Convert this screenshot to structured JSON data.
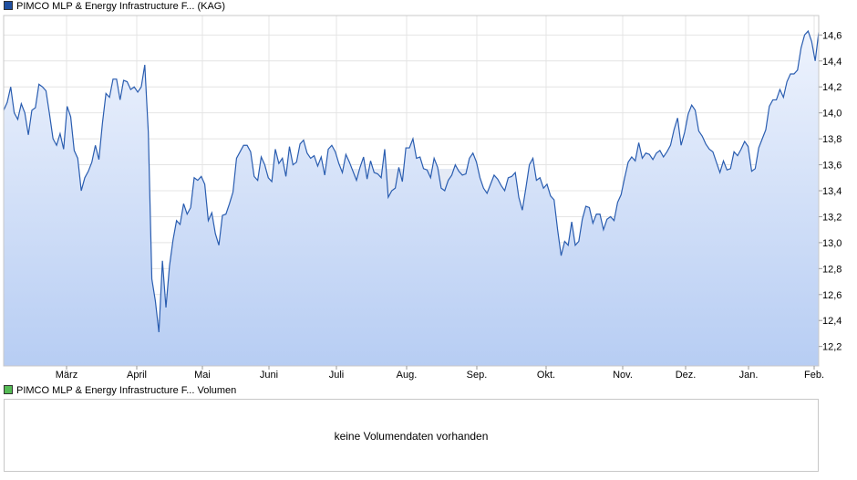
{
  "legend": {
    "price_label": "PIMCO MLP & Energy Infrastructure F...  (KAG)",
    "price_color": "#1f4fa0",
    "volume_label": "PIMCO MLP & Energy Infrastructure F...  Volumen",
    "volume_color": "#55bb55"
  },
  "volume_panel": {
    "message": "keine Volumendaten vorhanden"
  },
  "chart_data": {
    "type": "area",
    "title": "",
    "xlabel": "",
    "ylabel": "",
    "x_ticks": [
      "März",
      "April",
      "Mai",
      "Juni",
      "Juli",
      "Aug.",
      "Sep.",
      "Okt.",
      "Nov.",
      "Dez.",
      "Jan.",
      "Feb."
    ],
    "y_ticks": [
      12.2,
      12.4,
      12.6,
      12.8,
      13.0,
      13.2,
      13.4,
      13.6,
      13.8,
      14.0,
      14.2,
      14.4,
      14.6
    ],
    "ylim": [
      12.05,
      14.75
    ],
    "grid": true,
    "line_color": "#2a5db0",
    "fill_top_color": "#eef3fd",
    "fill_bottom_color": "#b7cdf3",
    "series": [
      {
        "values": [
          14.02,
          14.08,
          14.2,
          14.0,
          13.95,
          14.07,
          14.0,
          13.83,
          14.02,
          14.04,
          14.22,
          14.2,
          14.17,
          13.99,
          13.8,
          13.75,
          13.84,
          13.72,
          14.05,
          13.97,
          13.71,
          13.65,
          13.4,
          13.5,
          13.55,
          13.62,
          13.75,
          13.64,
          13.92,
          14.15,
          14.12,
          14.26,
          14.26,
          14.1,
          14.25,
          14.24,
          14.18,
          14.2,
          14.16,
          14.2,
          14.37,
          13.85,
          12.72,
          12.55,
          12.31,
          12.86,
          12.5,
          12.82,
          13.02,
          13.17,
          13.14,
          13.3,
          13.22,
          13.27,
          13.5,
          13.48,
          13.51,
          13.45,
          13.17,
          13.23,
          13.07,
          12.98,
          13.21,
          13.22,
          13.3,
          13.39,
          13.65,
          13.7,
          13.75,
          13.75,
          13.7,
          13.51,
          13.48,
          13.66,
          13.6,
          13.5,
          13.47,
          13.72,
          13.61,
          13.65,
          13.51,
          13.74,
          13.6,
          13.62,
          13.76,
          13.79,
          13.69,
          13.65,
          13.67,
          13.59,
          13.66,
          13.52,
          13.72,
          13.75,
          13.7,
          13.61,
          13.54,
          13.68,
          13.62,
          13.55,
          13.48,
          13.58,
          13.66,
          13.49,
          13.63,
          13.54,
          13.53,
          13.5,
          13.72,
          13.35,
          13.4,
          13.42,
          13.58,
          13.47,
          13.73,
          13.73,
          13.8,
          13.65,
          13.66,
          13.57,
          13.56,
          13.5,
          13.65,
          13.58,
          13.42,
          13.4,
          13.48,
          13.52,
          13.6,
          13.55,
          13.52,
          13.53,
          13.65,
          13.69,
          13.62,
          13.5,
          13.42,
          13.38,
          13.45,
          13.52,
          13.49,
          13.44,
          13.4,
          13.5,
          13.51,
          13.54,
          13.35,
          13.25,
          13.42,
          13.6,
          13.65,
          13.48,
          13.5,
          13.42,
          13.45,
          13.36,
          13.33,
          13.1,
          12.9,
          13.01,
          12.98,
          13.16,
          12.98,
          13.01,
          13.18,
          13.28,
          13.27,
          13.15,
          13.22,
          13.22,
          13.1,
          13.18,
          13.2,
          13.17,
          13.31,
          13.37,
          13.5,
          13.62,
          13.66,
          13.63,
          13.77,
          13.65,
          13.69,
          13.68,
          13.64,
          13.69,
          13.71,
          13.66,
          13.7,
          13.75,
          13.87,
          13.96,
          13.75,
          13.85,
          13.99,
          14.06,
          14.02,
          13.86,
          13.82,
          13.76,
          13.72,
          13.7,
          13.62,
          13.54,
          13.63,
          13.56,
          13.57,
          13.7,
          13.67,
          13.72,
          13.78,
          13.74,
          13.55,
          13.57,
          13.73,
          13.8,
          13.87,
          14.05,
          14.1,
          14.1,
          14.18,
          14.12,
          14.24,
          14.3,
          14.3,
          14.33,
          14.5,
          14.6,
          14.63,
          14.55,
          14.4,
          14.62
        ]
      }
    ]
  }
}
